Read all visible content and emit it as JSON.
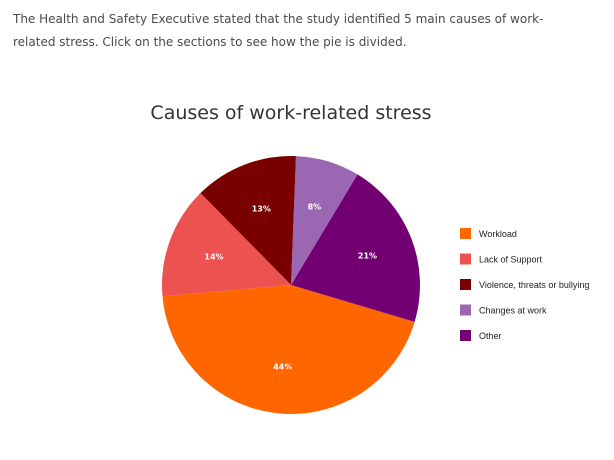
{
  "intro": {
    "text": "The Health and Safety Executive stated that the study identified 5 main causes of work-related stress. Click on the sections to see how the pie is divided."
  },
  "chart_data": {
    "type": "pie",
    "title": "Causes of work-related stress",
    "legend_position": "right",
    "start_angle_deg": 185,
    "direction": "counterclockwise",
    "slices": [
      {
        "label": "Workload",
        "value": 44,
        "display": "44%",
        "color": "#ff6600"
      },
      {
        "label": "Other",
        "value": 21,
        "display": "21%",
        "color": "#730073"
      },
      {
        "label": "Changes at work",
        "value": 8,
        "display": "8%",
        "color": "#9b67b3"
      },
      {
        "label": "Violence, threats or bullying",
        "value": 13,
        "display": "13%",
        "color": "#7a0000"
      },
      {
        "label": "Lack of Support",
        "value": 14,
        "display": "14%",
        "color": "#eb5250"
      }
    ],
    "legend_order": [
      "Workload",
      "Lack of Support",
      "Violence, threats or bullying",
      "Changes at work",
      "Other"
    ]
  }
}
